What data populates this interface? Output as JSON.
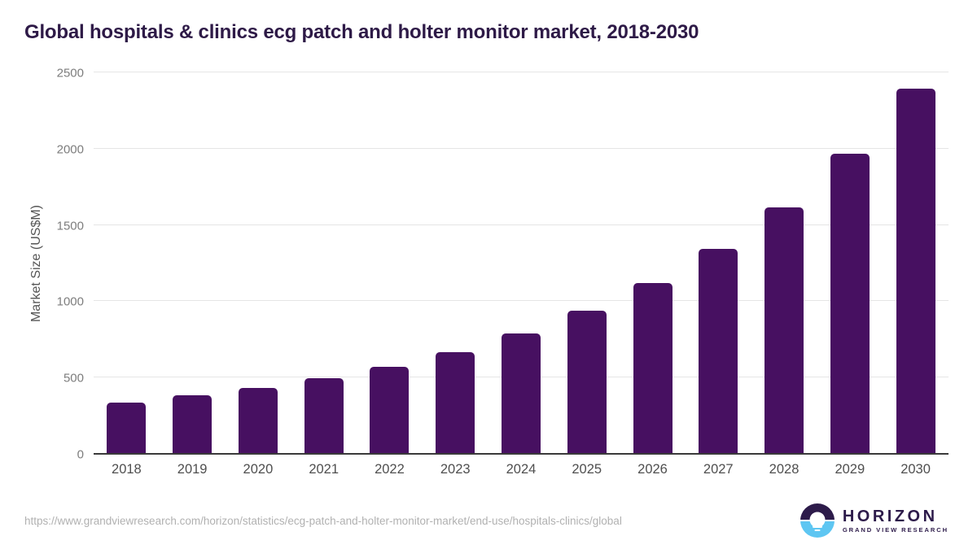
{
  "page": {
    "background": "#ffffff",
    "title_color": "#2e1a47"
  },
  "chart_data": {
    "type": "bar",
    "title": "Global hospitals & clinics ecg patch and holter monitor market, 2018-2030",
    "categories": [
      "2018",
      "2019",
      "2020",
      "2021",
      "2022",
      "2023",
      "2024",
      "2025",
      "2026",
      "2027",
      "2028",
      "2029",
      "2030"
    ],
    "values": [
      330,
      378,
      427,
      493,
      566,
      663,
      784,
      934,
      1114,
      1340,
      1612,
      1960,
      2390
    ],
    "xlabel": "",
    "ylabel": "Market Size (US$M)",
    "ylim": [
      0,
      2500
    ],
    "yticks": [
      0,
      500,
      1000,
      1500,
      2000,
      2500
    ],
    "bar_color": "#471061",
    "grid": "horizontal-only",
    "legend": "none",
    "axis_line_color": "#3a3a3a",
    "gridline_color": "#e5e5e5"
  },
  "footer": {
    "source_url": "https://www.grandviewresearch.com/horizon/statistics/ecg-patch-and-holter-monitor-market/end-use/hospitals-clinics/global",
    "logo": {
      "name": "HORIZON",
      "subtitle": "GRAND VIEW RESEARCH",
      "purple": "#2d1b4a",
      "blue": "#5ec6f2"
    }
  }
}
